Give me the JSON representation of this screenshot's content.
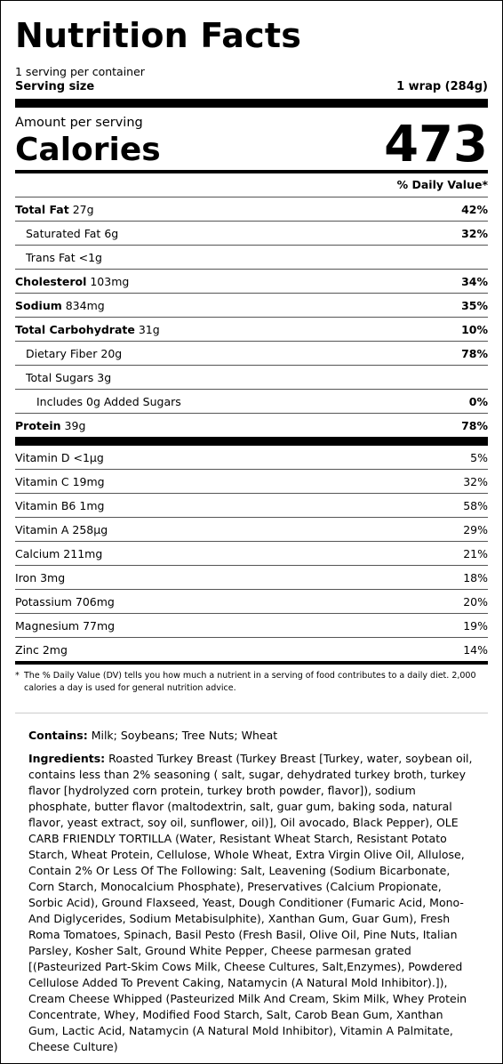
{
  "title": "Nutrition Facts",
  "servings_per_container": "1 serving per container",
  "serving_size": {
    "label": "Serving size",
    "value": "1 wrap (284g)"
  },
  "amount_per_serving": "Amount per serving",
  "calories": {
    "label": "Calories",
    "value": "473"
  },
  "dv_header": "% Daily Value*",
  "nutrients": [
    {
      "name": "Total Fat",
      "amount": "27g",
      "dv": "42%",
      "bold": true,
      "indent": 0
    },
    {
      "name": "Saturated Fat",
      "amount": "6g",
      "dv": "32%",
      "bold": false,
      "indent": 1
    },
    {
      "name": "Trans Fat",
      "amount": "<1g",
      "dv": "",
      "bold": false,
      "indent": 1
    },
    {
      "name": "Cholesterol",
      "amount": "103mg",
      "dv": "34%",
      "bold": true,
      "indent": 0
    },
    {
      "name": "Sodium",
      "amount": "834mg",
      "dv": "35%",
      "bold": true,
      "indent": 0
    },
    {
      "name": "Total Carbohydrate",
      "amount": "31g",
      "dv": "10%",
      "bold": true,
      "indent": 0
    },
    {
      "name": "Dietary Fiber",
      "amount": "20g",
      "dv": "78%",
      "bold": false,
      "indent": 1
    },
    {
      "name": "Total Sugars",
      "amount": "3g",
      "dv": "",
      "bold": false,
      "indent": 1
    },
    {
      "name": "Includes 0g Added Sugars",
      "amount": "",
      "dv": "0%",
      "bold": false,
      "indent": 2
    },
    {
      "name": "Protein",
      "amount": "39g",
      "dv": "78%",
      "bold": true,
      "indent": 0
    }
  ],
  "vitamins": [
    {
      "name": "Vitamin D",
      "amount": "<1µg",
      "dv": "5%"
    },
    {
      "name": "Vitamin C",
      "amount": "19mg",
      "dv": "32%"
    },
    {
      "name": "Vitamin B6",
      "amount": "1mg",
      "dv": "58%"
    },
    {
      "name": "Vitamin A",
      "amount": "258µg",
      "dv": "29%"
    },
    {
      "name": "Calcium",
      "amount": "211mg",
      "dv": "21%"
    },
    {
      "name": "Iron",
      "amount": "3mg",
      "dv": "18%"
    },
    {
      "name": "Potassium",
      "amount": "706mg",
      "dv": "20%"
    },
    {
      "name": "Magnesium",
      "amount": "77mg",
      "dv": "19%"
    },
    {
      "name": "Zinc",
      "amount": "2mg",
      "dv": "14%"
    }
  ],
  "footnote": {
    "star": "*",
    "text": "The % Daily Value (DV) tells you how much a nutrient in a serving of food contributes to a daily diet. 2,000 calories a day is used for general nutrition advice."
  },
  "contains": {
    "label": "Contains:",
    "text": "Milk; Soybeans; Tree Nuts; Wheat"
  },
  "ingredients": {
    "label": "Ingredients:",
    "text": "Roasted Turkey Breast (Turkey Breast [Turkey, water, soybean oil, contains less than 2% seasoning ( salt, sugar, dehydrated turkey broth, turkey flavor [hydrolyzed corn protein, turkey broth powder, flavor]), sodium phosphate, butter flavor (maltodextrin, salt, guar gum, baking soda, natural flavor, yeast extract, soy oil, sunflower, oil)], Oil avocado, Black Pepper), OLE CARB FRIENDLY TORTILLA (Water, Resistant Wheat Starch, Resistant Potato Starch, Wheat Protein, Cellulose, Whole Wheat, Extra Virgin Olive Oil, Allulose, Contain 2% Or Less Of The Following: Salt, Leavening (Sodium Bicarbonate, Corn Starch, Monocalcium Phosphate), Preservatives (Calcium Propionate, Sorbic Acid), Ground Flaxseed, Yeast, Dough Conditioner (Fumaric Acid, Mono-And Diglycerides, Sodium Metabisulphite), Xanthan Gum, Guar Gum), Fresh Roma Tomatoes, Spinach, Basil Pesto (Fresh Basil, Olive Oil, Pine Nuts, Italian Parsley, Kosher Salt, Ground White Pepper, Cheese parmesan grated [(Pasteurized Part-Skim Cows Milk, Cheese Cultures, Salt,Enzymes), Powdered Cellulose Added To Prevent Caking, Natamycin (A Natural Mold Inhibitor).]), Cream Cheese Whipped (Pasteurized Milk And Cream, Skim Milk, Whey Protein Concentrate, Whey, Modified Food Starch, Salt, Carob Bean Gum, Xanthan Gum, Lactic Acid, Natamycin (A Natural Mold Inhibitor), Vitamin A Palmitate, Cheese Culture)"
  }
}
